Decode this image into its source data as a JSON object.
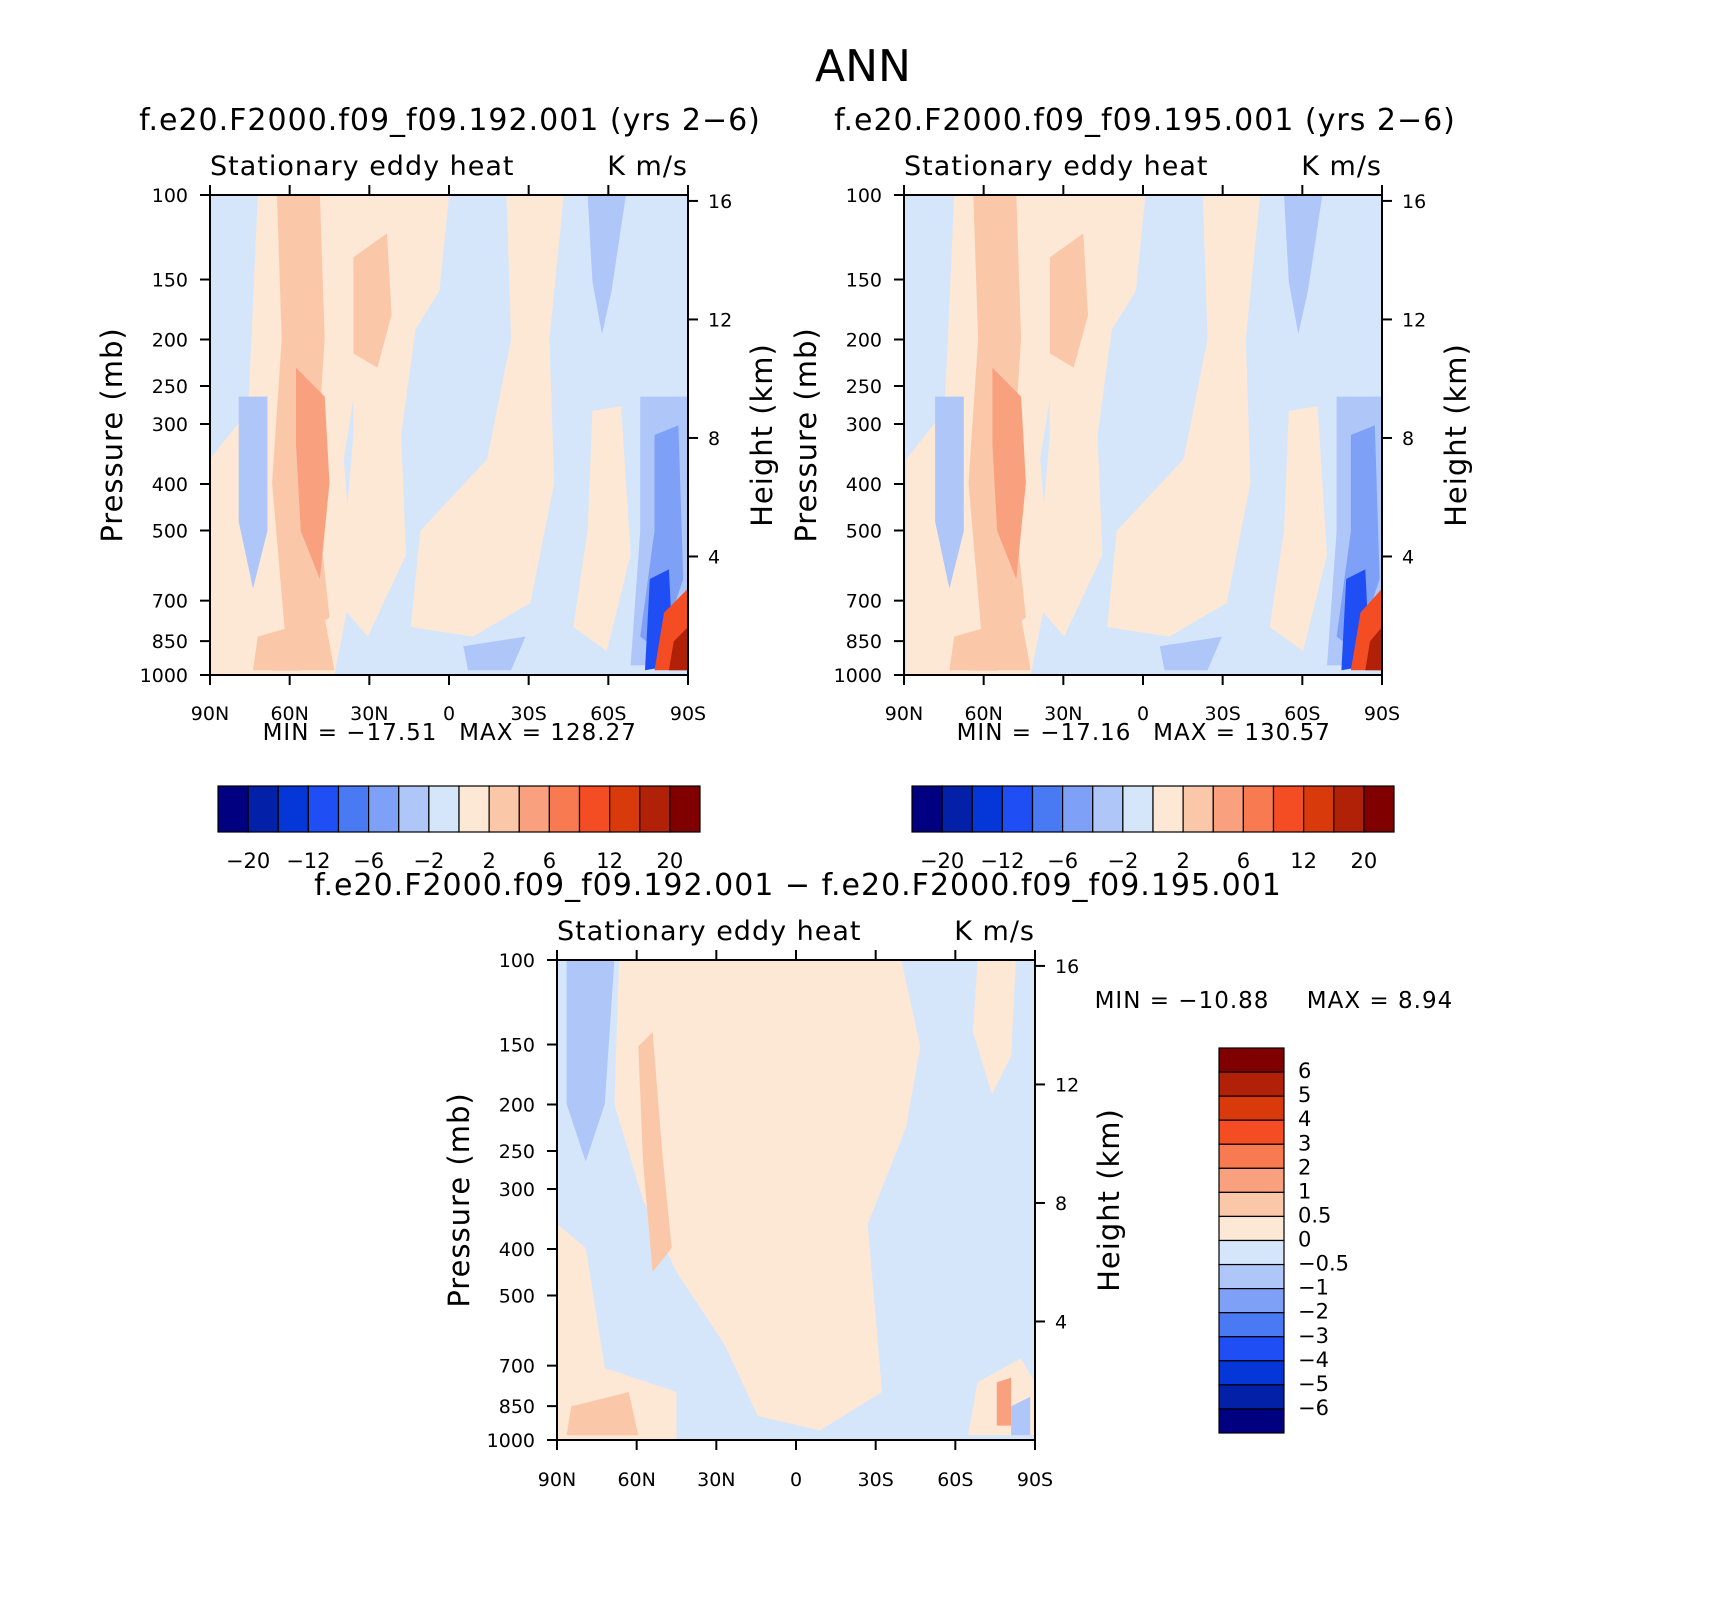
{
  "title": "ANN",
  "axes": {
    "pressure_label": "Pressure (mb)",
    "height_label": "Height (km)",
    "pressure_ticks": [
      100,
      150,
      200,
      250,
      300,
      400,
      500,
      700,
      850,
      1000
    ],
    "height_ticks": [
      4,
      8,
      12,
      16
    ],
    "lat_ticks": [
      "90N",
      "60N",
      "30N",
      "0",
      "30S",
      "60S",
      "90S"
    ]
  },
  "palette": {
    "seq": [
      "#000080",
      "#0320a8",
      "#0537d8",
      "#1f4ff4",
      "#4a79f4",
      "#7ea0f7",
      "#afc6f9",
      "#d5e6fb",
      "#fde8d5",
      "#fbc7a9",
      "#f9a07e",
      "#f77a50",
      "#f54d23",
      "#d83a0c",
      "#b12108",
      "#800000"
    ]
  },
  "chart_data": [
    {
      "type": "heatmap",
      "panel": "top-left",
      "title": "f.e20.F2000.f09_f09.192.001 (yrs 2-6)",
      "field": "Stationary eddy heat",
      "units": "K m/s",
      "min_label": "MIN = -17.51",
      "max_label": "MAX = 128.27",
      "x": [
        "90N",
        "60N",
        "30N",
        "0",
        "30S",
        "60S",
        "90S"
      ],
      "ylim": [
        1000,
        100
      ],
      "colorbar": {
        "orientation": "horizontal",
        "levels": [
          -20,
          -16,
          -12,
          -9,
          -6,
          -4,
          -2,
          -1,
          1,
          2,
          4,
          6,
          9,
          12,
          16,
          20
        ],
        "labels": [
          "-20",
          "-12",
          "-6",
          "-2",
          "2",
          "6",
          "12",
          "20"
        ]
      }
    },
    {
      "type": "heatmap",
      "panel": "top-right",
      "title": "f.e20.F2000.f09_f09.195.001 (yrs 2-6)",
      "field": "Stationary eddy heat",
      "units": "K m/s",
      "min_label": "MIN = -17.16",
      "max_label": "MAX = 130.57",
      "x": [
        "90N",
        "60N",
        "30N",
        "0",
        "30S",
        "60S",
        "90S"
      ],
      "ylim": [
        1000,
        100
      ],
      "colorbar": {
        "orientation": "horizontal",
        "levels": [
          -20,
          -16,
          -12,
          -9,
          -6,
          -4,
          -2,
          -1,
          1,
          2,
          4,
          6,
          9,
          12,
          16,
          20
        ],
        "labels": [
          "-20",
          "-12",
          "-6",
          "-2",
          "2",
          "6",
          "12",
          "20"
        ]
      }
    },
    {
      "type": "heatmap",
      "panel": "bottom",
      "title": "f.e20.F2000.f09_f09.192.001 - f.e20.F2000.f09_f09.195.001",
      "field": "Stationary eddy heat",
      "units": "K m/s",
      "min_label": "MIN = -10.88",
      "max_label": "MAX =     8.94",
      "x": [
        "90N",
        "60N",
        "30N",
        "0",
        "30S",
        "60S",
        "90S"
      ],
      "ylim": [
        1000,
        100
      ],
      "colorbar": {
        "orientation": "vertical",
        "labels": [
          "6",
          "5",
          "4",
          "3",
          "2",
          "1",
          "0.5",
          "0",
          "-0.5",
          "-1",
          "-2",
          "-3",
          "-4",
          "-5",
          "-6"
        ]
      }
    }
  ]
}
